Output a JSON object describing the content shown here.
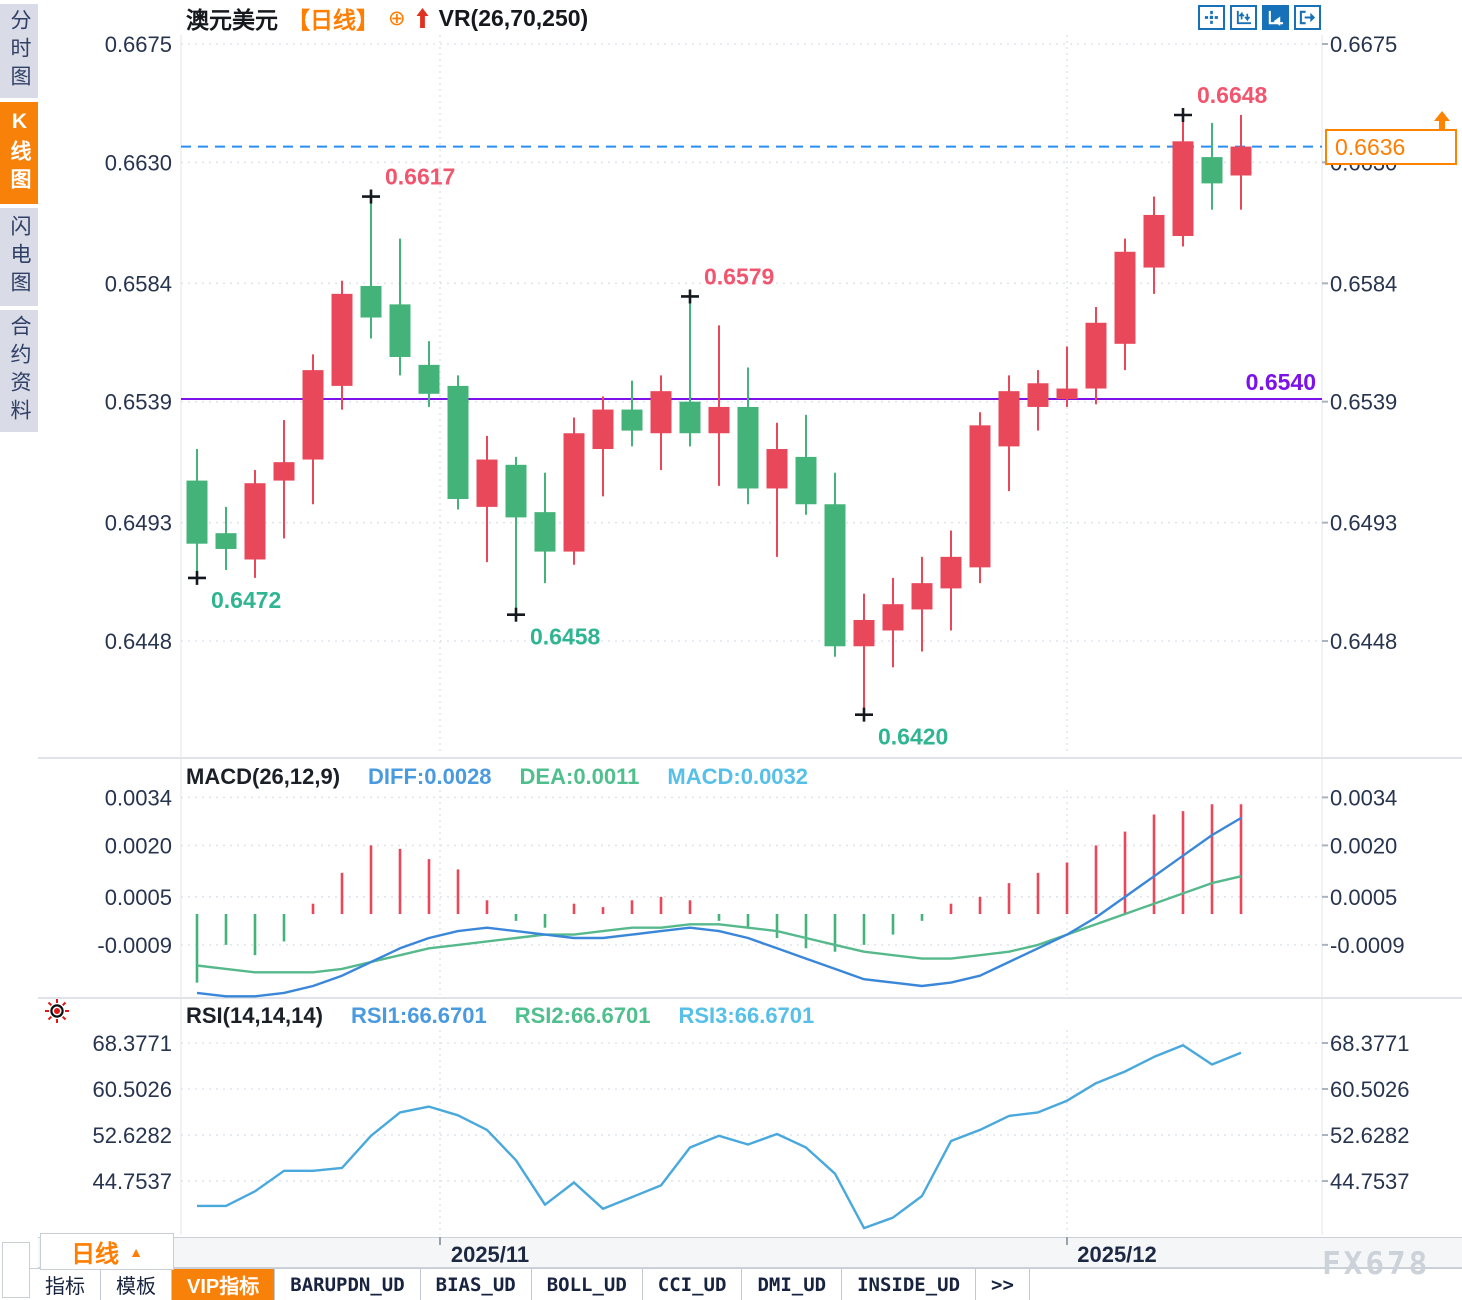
{
  "sidebar": {
    "items": [
      {
        "label": "分时图",
        "active": false
      },
      {
        "label": "K线图",
        "active": true
      },
      {
        "label": "闪电图",
        "active": false
      },
      {
        "label": "合约资料",
        "active": false
      }
    ]
  },
  "header": {
    "symbol": "澳元美元",
    "period_tag": "【日线】",
    "add_icon": "⊕",
    "indicator": "VR(26,70,250)"
  },
  "toolbar": {
    "icons": [
      {
        "name": "crosshair-tool-icon",
        "active": false
      },
      {
        "name": "axis-range-icon",
        "active": false
      },
      {
        "name": "auto-scale-icon",
        "active": true
      },
      {
        "name": "pan-right-icon",
        "active": false
      }
    ]
  },
  "price_box": {
    "value": "0.6636"
  },
  "bottom_bar": {
    "period_label": "日线",
    "period_arrow": "▲"
  },
  "tabs": [
    {
      "label": "指标",
      "active": false,
      "mono": false
    },
    {
      "label": "模板",
      "active": false,
      "mono": false
    },
    {
      "label": "VIP指标",
      "active": true,
      "mono": false
    },
    {
      "label": "BARUPDN_UD",
      "active": false,
      "mono": true
    },
    {
      "label": "BIAS_UD",
      "active": false,
      "mono": true
    },
    {
      "label": "BOLL_UD",
      "active": false,
      "mono": true
    },
    {
      "label": "CCI_UD",
      "active": false,
      "mono": true
    },
    {
      "label": "DMI_UD",
      "active": false,
      "mono": true
    },
    {
      "label": "INSIDE_UD",
      "active": false,
      "mono": true
    },
    {
      "label": ">>",
      "active": false,
      "mono": true
    }
  ],
  "watermark": "FX678",
  "chart_data": [
    {
      "type": "candlestick",
      "title": "澳元美元 日线",
      "y_axis": {
        "labels": [
          "0.6675",
          "0.6630",
          "0.6584",
          "0.6539",
          "0.6493",
          "0.6448"
        ],
        "values": [
          0.6675,
          0.663,
          0.6584,
          0.6539,
          0.6493,
          0.6448
        ]
      },
      "x_axis": {
        "labels": [
          "2025/11",
          "2025/12"
        ]
      },
      "colors": {
        "up": "#e9485b",
        "down": "#43b37a",
        "hline": "#7c12e8",
        "last_price_line": "#2a8df0",
        "high_label": "#f2556e",
        "low_label": "#2fb592"
      },
      "candles": [
        [
          0.6509,
          0.6521,
          0.6472,
          0.6485
        ],
        [
          0.6489,
          0.6499,
          0.6475,
          0.6483
        ],
        [
          0.6479,
          0.6513,
          0.6472,
          0.6508
        ],
        [
          0.6509,
          0.6532,
          0.6487,
          0.6516
        ],
        [
          0.6517,
          0.6557,
          0.65,
          0.6551
        ],
        [
          0.6545,
          0.6585,
          0.6536,
          0.658
        ],
        [
          0.6583,
          0.6617,
          0.6563,
          0.6571
        ],
        [
          0.6576,
          0.6601,
          0.6549,
          0.6556
        ],
        [
          0.6553,
          0.6562,
          0.6537,
          0.6542
        ],
        [
          0.6545,
          0.6549,
          0.6498,
          0.6502
        ],
        [
          0.6499,
          0.6526,
          0.6478,
          0.6517
        ],
        [
          0.6515,
          0.6518,
          0.6458,
          0.6495
        ],
        [
          0.6497,
          0.6512,
          0.647,
          0.6482
        ],
        [
          0.6482,
          0.6533,
          0.6477,
          0.6527
        ],
        [
          0.6521,
          0.6541,
          0.6503,
          0.6536
        ],
        [
          0.6536,
          0.6547,
          0.6522,
          0.6528
        ],
        [
          0.6527,
          0.6549,
          0.6513,
          0.6543
        ],
        [
          0.6539,
          0.6579,
          0.6522,
          0.6527
        ],
        [
          0.6527,
          0.6568,
          0.6507,
          0.6537
        ],
        [
          0.6537,
          0.6552,
          0.65,
          0.6506
        ],
        [
          0.6506,
          0.6531,
          0.648,
          0.6521
        ],
        [
          0.6518,
          0.6534,
          0.6496,
          0.65
        ],
        [
          0.65,
          0.6512,
          0.6442,
          0.6446
        ],
        [
          0.6446,
          0.6466,
          0.642,
          0.6456
        ],
        [
          0.6452,
          0.6472,
          0.6438,
          0.6462
        ],
        [
          0.646,
          0.648,
          0.6444,
          0.647
        ],
        [
          0.6468,
          0.649,
          0.6452,
          0.648
        ],
        [
          0.6476,
          0.6535,
          0.647,
          0.653
        ],
        [
          0.6522,
          0.6549,
          0.6505,
          0.6543
        ],
        [
          0.6537,
          0.6551,
          0.6528,
          0.6546
        ],
        [
          0.654,
          0.656,
          0.6537,
          0.6544
        ],
        [
          0.6544,
          0.6575,
          0.6538,
          0.6569
        ],
        [
          0.6561,
          0.6601,
          0.6551,
          0.6596
        ],
        [
          0.659,
          0.6617,
          0.658,
          0.661
        ],
        [
          0.6602,
          0.6648,
          0.6598,
          0.6638
        ],
        [
          0.6632,
          0.6645,
          0.6612,
          0.6622
        ],
        [
          0.6625,
          0.6648,
          0.6612,
          0.6636
        ]
      ],
      "hlines": [
        {
          "value": 0.654,
          "label": "0.6540",
          "style": "solid",
          "color": "#7c12e8"
        },
        {
          "value": 0.6636,
          "label": "",
          "style": "dashed",
          "color": "#2a8df0"
        }
      ],
      "annotations": [
        {
          "index": 0,
          "price": 0.6472,
          "text": "0.6472",
          "side": "low"
        },
        {
          "index": 6,
          "price": 0.6617,
          "text": "0.6617",
          "side": "high"
        },
        {
          "index": 11,
          "price": 0.6458,
          "text": "0.6458",
          "side": "low"
        },
        {
          "index": 17,
          "price": 0.6579,
          "text": "0.6579",
          "side": "high"
        },
        {
          "index": 23,
          "price": 0.642,
          "text": "0.6420",
          "side": "low"
        },
        {
          "index": 34,
          "price": 0.6648,
          "text": "0.6648",
          "side": "high"
        }
      ],
      "last_price": "0.6636"
    },
    {
      "type": "macd",
      "header": {
        "name": "MACD(26,12,9)",
        "diff": "DIFF:0.0028",
        "dea": "DEA:0.0011",
        "macd": "MACD:0.0032"
      },
      "y_axis": {
        "labels": [
          "0.0034",
          "0.0020",
          "0.0005",
          "-0.0009"
        ],
        "values": [
          0.0034,
          0.002,
          0.0005,
          -0.0009
        ]
      },
      "histogram": [
        -0.002,
        -0.0009,
        -0.0012,
        -0.0008,
        0.0003,
        0.0012,
        0.002,
        0.0019,
        0.0016,
        0.0013,
        0.0004,
        -0.0002,
        -0.0004,
        0.0003,
        0.0002,
        0.0004,
        0.0005,
        0.0004,
        -0.0002,
        -0.0004,
        -0.0007,
        -0.001,
        -0.0011,
        -0.0009,
        -0.0006,
        -0.0002,
        0.0003,
        0.0005,
        0.0009,
        0.0012,
        0.0015,
        0.002,
        0.0024,
        0.0029,
        0.003,
        0.0032,
        0.0032
      ],
      "diff": [
        -0.0023,
        -0.0024,
        -0.0024,
        -0.0023,
        -0.0021,
        -0.0018,
        -0.0014,
        -0.001,
        -0.0007,
        -0.0005,
        -0.0004,
        -0.0005,
        -0.0006,
        -0.0007,
        -0.0007,
        -0.0006,
        -0.0005,
        -0.0004,
        -0.0005,
        -0.0007,
        -0.001,
        -0.0013,
        -0.0016,
        -0.0019,
        -0.002,
        -0.0021,
        -0.002,
        -0.0018,
        -0.0014,
        -0.001,
        -0.0006,
        -0.0001,
        0.0005,
        0.0011,
        0.0017,
        0.0023,
        0.0028
      ],
      "dea": [
        -0.0015,
        -0.0016,
        -0.0017,
        -0.0017,
        -0.0017,
        -0.0016,
        -0.0014,
        -0.0012,
        -0.001,
        -0.0009,
        -0.0008,
        -0.0007,
        -0.0006,
        -0.0006,
        -0.0005,
        -0.0004,
        -0.0004,
        -0.0003,
        -0.0003,
        -0.0004,
        -0.0005,
        -0.0007,
        -0.0009,
        -0.0011,
        -0.0012,
        -0.0013,
        -0.0013,
        -0.0012,
        -0.0011,
        -0.0009,
        -0.0006,
        -0.0003,
        0.0,
        0.0003,
        0.0006,
        0.0009,
        0.0011
      ],
      "colors": {
        "pos": "#e9485b",
        "neg": "#43b37a",
        "diff": "#3a87d9",
        "dea": "#55b98c"
      }
    },
    {
      "type": "line",
      "header": {
        "name": "RSI(14,14,14)",
        "rsi1": "RSI1:66.6701",
        "rsi2": "RSI2:66.6701",
        "rsi3": "RSI3:66.6701"
      },
      "y_axis": {
        "labels": [
          "68.3771",
          "60.5026",
          "52.6282",
          "44.7537"
        ],
        "values": [
          68.3771,
          60.5026,
          52.6282,
          44.7537
        ]
      },
      "values": [
        40.5,
        40.5,
        43.0,
        46.5,
        46.5,
        47.0,
        52.5,
        56.5,
        57.5,
        56.0,
        53.5,
        48.3,
        40.7,
        44.5,
        40.0,
        42.0,
        44.0,
        50.5,
        52.5,
        51.0,
        52.8,
        50.5,
        46.0,
        36.7,
        38.5,
        42.2,
        51.6,
        53.5,
        55.9,
        56.5,
        58.5,
        61.5,
        63.5,
        66.0,
        68.0,
        64.7,
        66.7
      ],
      "colors": {
        "line": "#49a8dc"
      }
    }
  ]
}
